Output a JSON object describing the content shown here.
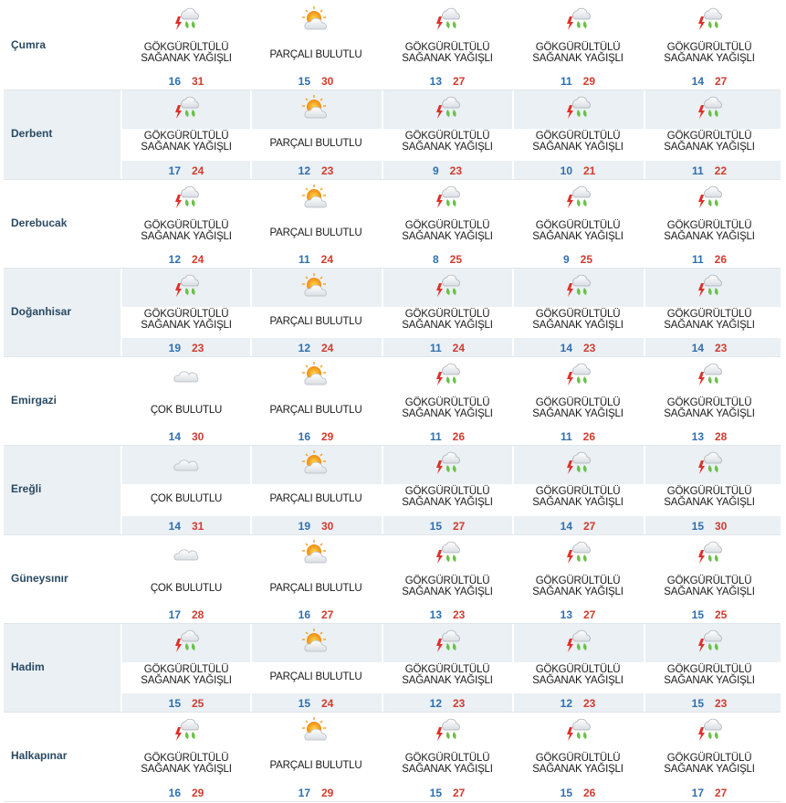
{
  "colors": {
    "low": "#2f6fb0",
    "high": "#d23b2e",
    "city": "#2a4a63",
    "band": "#eaf0f4"
  },
  "conditions": {
    "storm": {
      "text": "GÖKGÜRÜLTÜLÜ\nSAĞANAK YAĞIŞLI",
      "icon": "thunderstorm-rain-icon"
    },
    "partly": {
      "text": "PARÇALI BULUTLU",
      "icon": "partly-cloudy-icon"
    },
    "cloudy": {
      "text": "ÇOK BULUTLU",
      "icon": "cloudy-icon"
    }
  },
  "rows": [
    {
      "city": "Çumra",
      "days": [
        {
          "c": "storm",
          "lo": "16",
          "hi": "31"
        },
        {
          "c": "partly",
          "lo": "15",
          "hi": "30"
        },
        {
          "c": "storm",
          "lo": "13",
          "hi": "27"
        },
        {
          "c": "storm",
          "lo": "11",
          "hi": "29"
        },
        {
          "c": "storm",
          "lo": "14",
          "hi": "27"
        }
      ]
    },
    {
      "city": "Derbent",
      "days": [
        {
          "c": "storm",
          "lo": "17",
          "hi": "24"
        },
        {
          "c": "partly",
          "lo": "12",
          "hi": "23"
        },
        {
          "c": "storm",
          "lo": "9",
          "hi": "23"
        },
        {
          "c": "storm",
          "lo": "10",
          "hi": "21"
        },
        {
          "c": "storm",
          "lo": "11",
          "hi": "22"
        }
      ]
    },
    {
      "city": "Derebucak",
      "days": [
        {
          "c": "storm",
          "lo": "12",
          "hi": "24"
        },
        {
          "c": "partly",
          "lo": "11",
          "hi": "24"
        },
        {
          "c": "storm",
          "lo": "8",
          "hi": "25"
        },
        {
          "c": "storm",
          "lo": "9",
          "hi": "25"
        },
        {
          "c": "storm",
          "lo": "11",
          "hi": "26"
        }
      ]
    },
    {
      "city": "Doğanhisar",
      "days": [
        {
          "c": "storm",
          "lo": "19",
          "hi": "23"
        },
        {
          "c": "partly",
          "lo": "12",
          "hi": "24"
        },
        {
          "c": "storm",
          "lo": "11",
          "hi": "24"
        },
        {
          "c": "storm",
          "lo": "14",
          "hi": "23"
        },
        {
          "c": "storm",
          "lo": "14",
          "hi": "23"
        }
      ]
    },
    {
      "city": "Emirgazi",
      "days": [
        {
          "c": "cloudy",
          "lo": "14",
          "hi": "30"
        },
        {
          "c": "partly",
          "lo": "16",
          "hi": "29"
        },
        {
          "c": "storm",
          "lo": "11",
          "hi": "26"
        },
        {
          "c": "storm",
          "lo": "11",
          "hi": "26"
        },
        {
          "c": "storm",
          "lo": "13",
          "hi": "28"
        }
      ]
    },
    {
      "city": "Ereğli",
      "days": [
        {
          "c": "cloudy",
          "lo": "14",
          "hi": "31"
        },
        {
          "c": "partly",
          "lo": "19",
          "hi": "30"
        },
        {
          "c": "storm",
          "lo": "15",
          "hi": "27"
        },
        {
          "c": "storm",
          "lo": "14",
          "hi": "27"
        },
        {
          "c": "storm",
          "lo": "15",
          "hi": "30"
        }
      ]
    },
    {
      "city": "Güneysınır",
      "days": [
        {
          "c": "cloudy",
          "lo": "17",
          "hi": "28"
        },
        {
          "c": "partly",
          "lo": "16",
          "hi": "27"
        },
        {
          "c": "storm",
          "lo": "13",
          "hi": "23"
        },
        {
          "c": "storm",
          "lo": "13",
          "hi": "27"
        },
        {
          "c": "storm",
          "lo": "15",
          "hi": "25"
        }
      ]
    },
    {
      "city": "Hadim",
      "days": [
        {
          "c": "storm",
          "lo": "15",
          "hi": "25"
        },
        {
          "c": "partly",
          "lo": "15",
          "hi": "24"
        },
        {
          "c": "storm",
          "lo": "12",
          "hi": "23"
        },
        {
          "c": "storm",
          "lo": "12",
          "hi": "23"
        },
        {
          "c": "storm",
          "lo": "15",
          "hi": "23"
        }
      ]
    },
    {
      "city": "Halkapınar",
      "days": [
        {
          "c": "storm",
          "lo": "16",
          "hi": "29"
        },
        {
          "c": "partly",
          "lo": "17",
          "hi": "29"
        },
        {
          "c": "storm",
          "lo": "15",
          "hi": "27"
        },
        {
          "c": "storm",
          "lo": "15",
          "hi": "26"
        },
        {
          "c": "storm",
          "lo": "17",
          "hi": "27"
        }
      ]
    }
  ]
}
